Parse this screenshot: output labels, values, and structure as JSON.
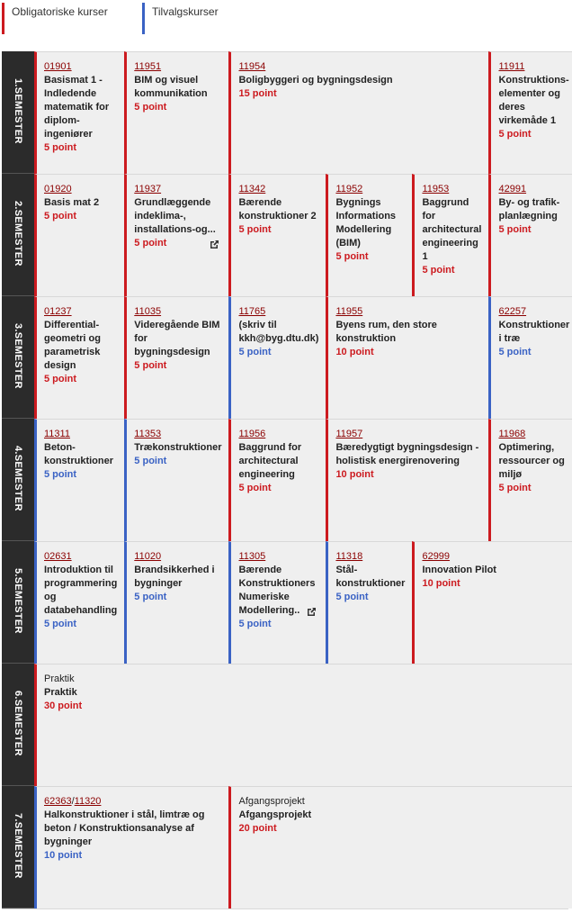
{
  "legend": [
    {
      "label": "Obligatoriske kurser",
      "type": "mandatory"
    },
    {
      "label": "Tilvalgskurser",
      "type": "elective"
    }
  ],
  "colors": {
    "mandatory": "#cc1a1f",
    "elective": "#3a62c4"
  },
  "semesters": [
    {
      "label": "1.SEMESTER",
      "cells": [
        {
          "codes": [
            "01901"
          ],
          "title": "Basismat 1 - Indledende matematik for diplom-ingeniører",
          "points": "5 point",
          "type": "mandatory",
          "span": 1
        },
        {
          "codes": [
            "11951"
          ],
          "title": "BIM og visuel kommunikation",
          "points": "5 point",
          "type": "mandatory",
          "span": 1
        },
        {
          "codes": [
            "11954"
          ],
          "title": "Boligbyggeri og bygningsdesign",
          "points": "15 point",
          "type": "mandatory",
          "span": 3
        },
        {
          "codes": [
            "11911"
          ],
          "title": "Konstruktions-elementer og deres virkemåde 1",
          "points": "5 point",
          "type": "mandatory",
          "span": 1
        }
      ]
    },
    {
      "label": "2.SEMESTER",
      "cells": [
        {
          "codes": [
            "01920"
          ],
          "title": "Basis mat 2",
          "points": "5 point",
          "type": "mandatory",
          "span": 1
        },
        {
          "codes": [
            "11937"
          ],
          "title": "Grundlæggende indeklima-, installations-og...",
          "points": "5 point",
          "type": "mandatory",
          "span": 1,
          "external": true
        },
        {
          "codes": [
            "11342"
          ],
          "title": "Bærende konstruktioner 2",
          "points": "5 point",
          "type": "mandatory",
          "span": 1
        },
        {
          "codes": [
            "11952"
          ],
          "title": "Bygnings Informations Modellering (BIM)",
          "points": "5 point",
          "type": "mandatory",
          "span": 1
        },
        {
          "codes": [
            "11953"
          ],
          "title": "Baggrund for architectural engineering 1",
          "points": "5 point",
          "type": "mandatory",
          "span": 1
        },
        {
          "codes": [
            "42991"
          ],
          "title": "By- og trafik-planlægning",
          "points": "5 point",
          "type": "mandatory",
          "span": 1
        }
      ]
    },
    {
      "label": "3.SEMESTER",
      "cells": [
        {
          "codes": [
            "01237"
          ],
          "title": "Differential-geometri og parametrisk design",
          "points": "5 point",
          "type": "mandatory",
          "span": 1
        },
        {
          "codes": [
            "11035"
          ],
          "title": "Videregående BIM for bygningsdesign",
          "points": "5 point",
          "type": "mandatory",
          "span": 1
        },
        {
          "codes": [
            "11765"
          ],
          "title": "(skriv til kkh@byg.dtu.dk)",
          "points": "5 point",
          "type": "elective",
          "span": 1
        },
        {
          "codes": [
            "11955"
          ],
          "title": "Byens rum, den store konstruktion",
          "points": "10 point",
          "type": "mandatory",
          "span": 2
        },
        {
          "codes": [
            "62257"
          ],
          "title": "Konstruktioner i træ",
          "points": "5 point",
          "type": "elective",
          "span": 1
        }
      ]
    },
    {
      "label": "4.SEMESTER",
      "cells": [
        {
          "codes": [
            "11311"
          ],
          "title": "Beton-konstruktioner",
          "points": "5 point",
          "type": "elective",
          "span": 1
        },
        {
          "codes": [
            "11353"
          ],
          "title": "Trækonstruktioner",
          "points": "5 point",
          "type": "elective",
          "span": 1
        },
        {
          "codes": [
            "11956"
          ],
          "title": "Baggrund for architectural engineering",
          "points": "5 point",
          "type": "mandatory",
          "span": 1
        },
        {
          "codes": [
            "11957"
          ],
          "title": "Bæredygtigt bygningsdesign - holistisk energirenovering",
          "points": "10 point",
          "type": "mandatory",
          "span": 2
        },
        {
          "codes": [
            "11968"
          ],
          "title": "Optimering, ressourcer og miljø",
          "points": "5 point",
          "type": "mandatory",
          "span": 1
        }
      ]
    },
    {
      "label": "5.SEMESTER",
      "cells": [
        {
          "codes": [
            "02631"
          ],
          "title": "Introduktion til programmering og databehandling",
          "points": "5 point",
          "type": "elective",
          "span": 1
        },
        {
          "codes": [
            "11020"
          ],
          "title": "Brandsikkerhed i bygninger",
          "points": "5 point",
          "type": "elective",
          "span": 1
        },
        {
          "codes": [
            "11305"
          ],
          "title": "Bærende Konstruktioners Numeriske Modellering..",
          "points": "5 point",
          "type": "elective",
          "span": 1,
          "external": true
        },
        {
          "codes": [
            "11318"
          ],
          "title": "Stål-konstruktioner",
          "points": "5 point",
          "type": "elective",
          "span": 1
        },
        {
          "codes": [
            "62999"
          ],
          "title": "Innovation Pilot",
          "points": "10 point",
          "type": "mandatory",
          "span": 2
        }
      ]
    },
    {
      "label": "6.SEMESTER",
      "cells": [
        {
          "prefix": "Praktik",
          "title": "Praktik",
          "points": "30 point",
          "type": "mandatory",
          "span": 6
        }
      ]
    },
    {
      "label": "7.SEMESTER",
      "cells": [
        {
          "codes": [
            "62363",
            "11320"
          ],
          "code_separator": "/",
          "title": "Halkonstruktioner i stål, limtræ og beton / Konstruktionsanalyse af bygninger",
          "points": "10 point",
          "type": "elective",
          "span": 2
        },
        {
          "prefix": "Afgangsprojekt",
          "title": "Afgangsprojekt",
          "points": "20 point",
          "type": "mandatory",
          "span": 4
        }
      ]
    }
  ]
}
